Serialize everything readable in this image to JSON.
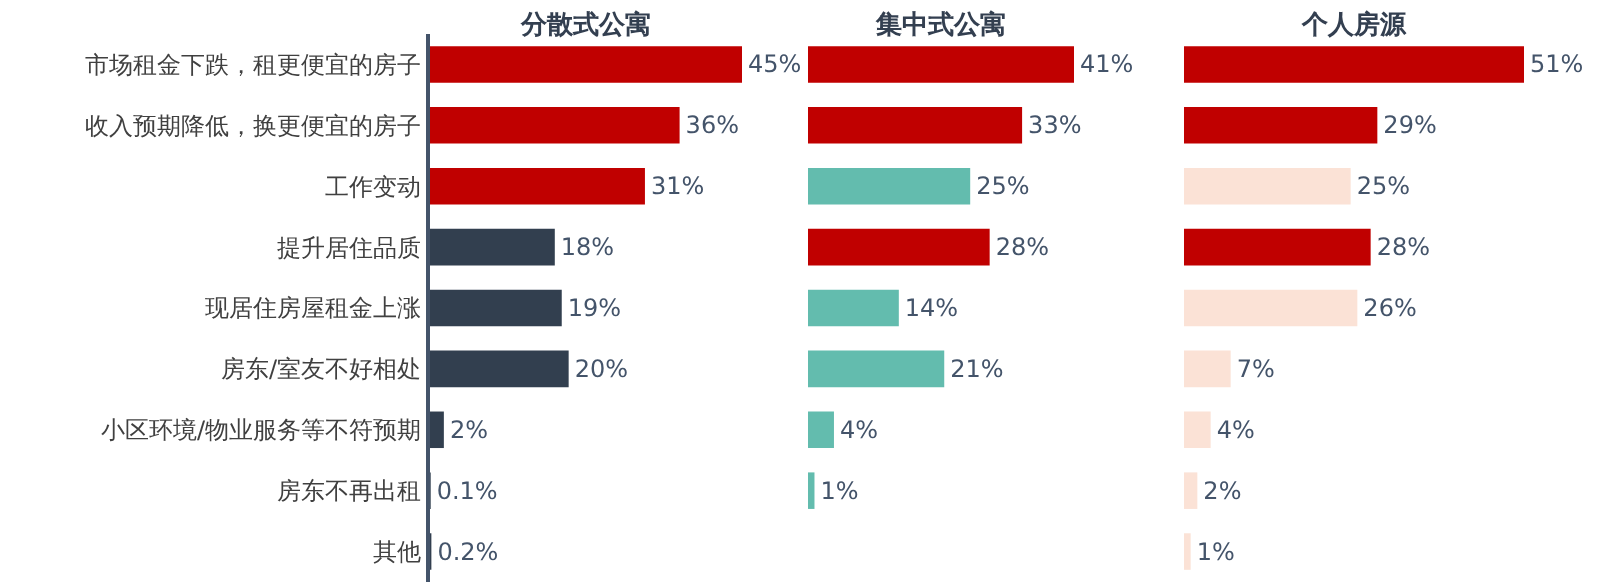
{
  "chart_data": [
    {
      "type": "bar",
      "orientation": "horizontal",
      "title": "分散式公寓",
      "tick_labels": "y",
      "categories": [
        "市场租金下跌，租更便宜的房子",
        "收入预期降低，换更便宜的房子",
        "工作变动",
        "提升居住品质",
        "现居住房屋租金上涨",
        "房东/室友不好相处",
        "小区环境/物业服务等不符预期",
        "房东不再出租",
        "其他"
      ],
      "values": [
        45,
        36,
        31,
        18,
        19,
        20,
        2,
        0.1,
        0.2
      ],
      "value_labels": [
        "45%",
        "36%",
        "31%",
        "18%",
        "19%",
        "20%",
        "2%",
        "0.1%",
        "0.2%"
      ],
      "colors": [
        "#c00000",
        "#c00000",
        "#c00000",
        "#323f4f",
        "#323f4f",
        "#323f4f",
        "#323f4f",
        "#323f4f",
        "#323f4f"
      ]
    },
    {
      "type": "bar",
      "orientation": "horizontal",
      "title": "集中式公寓",
      "tick_labels": false,
      "categories": [
        null,
        null,
        null,
        null,
        null,
        null,
        null,
        null,
        null
      ],
      "values": [
        41,
        33,
        25,
        28,
        14,
        21,
        4,
        1,
        null
      ],
      "value_labels": [
        "41%",
        "33%",
        "25%",
        "28%",
        "14%",
        "21%",
        "4%",
        "1%",
        null
      ],
      "colors": [
        "#c00000",
        "#c00000",
        "#63bcae",
        "#c00000",
        "#63bcae",
        "#63bcae",
        "#63bcae",
        "#63bcae",
        "#63bcae"
      ]
    },
    {
      "type": "bar",
      "orientation": "horizontal",
      "title": "个人房源",
      "tick_labels": false,
      "categories": [
        null,
        null,
        null,
        null,
        null,
        null,
        null,
        null,
        null
      ],
      "values": [
        51,
        29,
        25,
        28,
        26,
        7,
        4,
        2,
        1
      ],
      "value_labels": [
        "51%",
        "29%",
        "25%",
        "28%",
        "26%",
        "7%",
        "4%",
        "2%",
        "1%"
      ],
      "colors": [
        "#c00000",
        "#c00000",
        "#fbe2d6",
        "#c00000",
        "#fbe2d6",
        "#fbe2d6",
        "#fbe2d6",
        "#fbe2d6",
        "#fbe2d6"
      ]
    }
  ]
}
